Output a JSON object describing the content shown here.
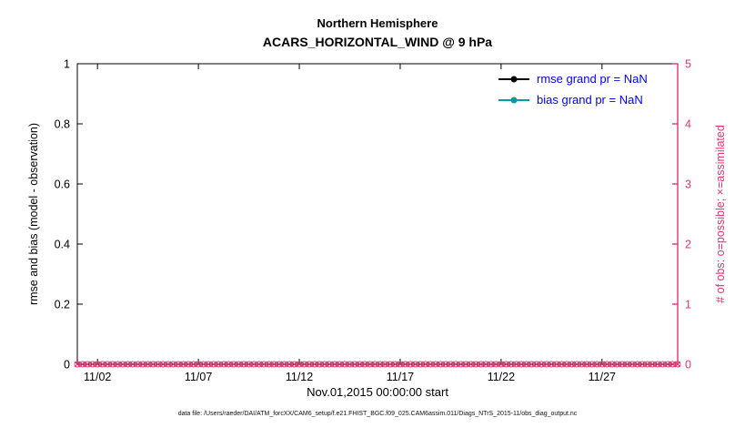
{
  "chart_data": {
    "type": "line",
    "title": "Northern Hemisphere",
    "subtitle": "ACARS_HORIZONTAL_WIND @ 9 hPa",
    "xlabel": "Nov.01,2015 00:00:00 start",
    "ylabel_left": "rmse and bias (model - observation)",
    "ylabel_right": "# of obs: o=possible; ×=assimilated",
    "footer": "data file: /Users/raeder/DAI/ATM_forcXX/CAM6_setup/f.e21.FHIST_BGC.f09_025.CAM6assim.011/Diags_NTrS_2015-11/obs_diag_output.nc",
    "grid": false,
    "x_axis": {
      "domain_days": [
        1,
        30.75
      ],
      "ticks": [
        {
          "day": 2,
          "label": "11/02"
        },
        {
          "day": 7,
          "label": "11/07"
        },
        {
          "day": 12,
          "label": "11/12"
        },
        {
          "day": 17,
          "label": "11/17"
        },
        {
          "day": 22,
          "label": "11/22"
        },
        {
          "day": 27,
          "label": "11/27"
        }
      ]
    },
    "y_left": {
      "min": 0,
      "max": 1,
      "tick_values": [
        0,
        0.2,
        0.4,
        0.6,
        0.8,
        1
      ],
      "ticks": [
        "0",
        "0.2",
        "0.4",
        "0.6",
        "0.8",
        "1"
      ],
      "color": "#000000"
    },
    "y_right": {
      "min": 0,
      "max": 5,
      "tick_values": [
        0,
        1,
        2,
        3,
        4,
        5
      ],
      "ticks": [
        "0",
        "1",
        "2",
        "3",
        "4",
        "5"
      ],
      "color": "#e2356f"
    },
    "series": [
      {
        "name": "rmse",
        "legend_label": "rmse grand pr = NaN",
        "color": "#000000",
        "values": []
      },
      {
        "name": "bias",
        "legend_label": "bias grand pr = NaN",
        "color": "#009e9e",
        "values": []
      }
    ],
    "obs_markers": {
      "possible_symbol": "o",
      "assimilated_symbol": "x",
      "value": 0,
      "start_day": 1,
      "end_day": 30.75,
      "interval_days": 0.25,
      "color": "#e2356f"
    },
    "legend": {
      "position": "top-right",
      "text_color": "#0000ff"
    }
  }
}
